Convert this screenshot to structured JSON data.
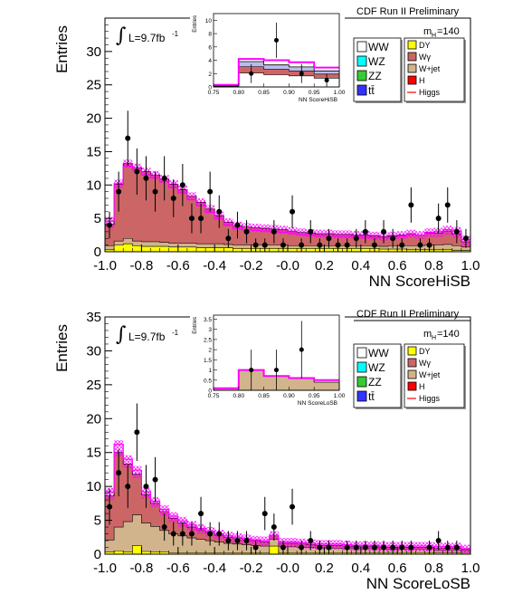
{
  "common": {
    "ylabel": "Entries",
    "experiment": "CDF Run II Preliminary",
    "mass_label": "m",
    "mass_sub": "H",
    "mass_value": "=140",
    "lumi_label": "L=9.7fb",
    "lumi_exp": "-1",
    "integral_symbol": "∫",
    "xticks": [
      "-1.0",
      "-0.8",
      "-0.6",
      "-0.4",
      "-0.2",
      "-0.0",
      "0.2",
      "0.4",
      "0.6",
      "0.8",
      "1.0"
    ],
    "inset_xticks": [
      "0.75",
      "0.80",
      "0.85",
      "0.90",
      "0.95",
      "1.00"
    ],
    "inset_ylabel": "Entries",
    "legend_left": [
      {
        "label": "WW",
        "color": "#ffffff"
      },
      {
        "label": "WZ",
        "color": "#00ffff"
      },
      {
        "label": "ZZ",
        "color": "#33cc33"
      },
      {
        "label": "tt̄",
        "color": "#3333ff"
      }
    ],
    "legend_right": [
      {
        "label": "DY",
        "color": "#ffff00"
      },
      {
        "label": "Wγ",
        "color": "#cc6666"
      },
      {
        "label": "W+jet",
        "color": "#d2b48c"
      },
      {
        "label": "H",
        "color": "#ff0000"
      },
      {
        "label": "Higgs",
        "color": "#ff3333",
        "line": true
      }
    ],
    "colors": {
      "bkg_total": "#cc6666",
      "wjet": "#d2b48c",
      "dy": "#ffff00",
      "ww": "#ffffff",
      "signal": "#ff00ff",
      "data": "#000000"
    }
  },
  "chart_data": [
    {
      "type": "bar",
      "xlabel": "NN ScoreHiSB",
      "ylabel": "Entries",
      "xlim": [
        -1.0,
        1.0
      ],
      "ylim": [
        0,
        35
      ],
      "yticks": [
        0,
        5,
        10,
        15,
        20,
        25,
        30
      ],
      "bin_edges_start": -1.0,
      "bin_width": 0.05,
      "series": [
        {
          "name": "Wγ",
          "values": [
            3.2,
            8.5,
            11.2,
            11.0,
            10.5,
            10.0,
            9.5,
            8.8,
            8.0,
            7.0,
            6.2,
            5.2,
            4.2,
            3.3,
            2.9,
            2.7,
            2.6,
            2.5,
            2.4,
            2.3,
            2.2,
            2.0,
            1.9,
            1.8,
            1.8,
            1.7,
            1.7,
            1.6,
            1.6,
            1.5,
            1.5,
            1.5,
            1.6,
            1.8,
            1.6,
            1.8,
            1.8,
            2.0,
            1.8,
            0.8
          ]
        },
        {
          "name": "W+jet",
          "values": [
            0.6,
            0.6,
            0.8,
            0.7,
            0.7,
            0.7,
            0.6,
            0.6,
            0.6,
            0.6,
            0.6,
            0.6,
            0.6,
            0.5,
            0.5,
            0.5,
            0.5,
            0.5,
            0.5,
            0.5,
            0.4,
            0.4,
            0.4,
            0.4,
            0.4,
            0.4,
            0.4,
            0.4,
            0.4,
            0.4,
            0.4,
            0.5,
            0.5,
            0.6,
            0.6,
            0.7,
            0.7,
            0.8,
            0.7,
            0.5
          ]
        },
        {
          "name": "DY",
          "values": [
            0.3,
            1.0,
            1.2,
            0.9,
            0.8,
            0.8,
            0.8,
            0.7,
            0.7,
            0.7,
            0.6,
            0.6,
            0.6,
            0.6,
            0.5,
            0.5,
            0.5,
            0.5,
            0.5,
            0.5,
            0.5,
            0.5,
            0.5,
            0.5,
            0.5,
            0.5,
            0.5,
            0.5,
            0.5,
            0.5,
            0.4,
            0.4,
            0.4,
            0.3,
            0.3,
            0.3,
            0.3,
            0.3,
            0.2,
            0.2
          ]
        },
        {
          "name": "Higgs",
          "values": [
            4.6,
            10.2,
            12.8,
            12.3,
            11.5,
            11.1,
            10.5,
            9.6,
            8.8,
            7.8,
            6.9,
            5.9,
            4.9,
            4.0,
            3.5,
            3.3,
            3.2,
            3.1,
            3.0,
            2.9,
            2.8,
            2.6,
            2.5,
            2.4,
            2.4,
            2.3,
            2.3,
            2.2,
            2.2,
            2.1,
            2.1,
            2.2,
            2.3,
            2.6,
            2.5,
            2.9,
            3.0,
            3.3,
            3.1,
            1.8
          ]
        },
        {
          "name": "Data",
          "values": [
            4,
            9,
            17,
            12,
            11,
            9,
            11,
            8,
            10,
            5,
            5,
            9,
            6,
            2,
            4,
            3,
            1,
            1,
            3,
            1,
            6,
            1,
            3,
            1,
            2,
            1,
            1,
            2,
            3,
            1,
            3,
            2,
            1,
            7,
            1,
            1,
            5,
            7,
            3,
            2
          ]
        }
      ],
      "inset": {
        "xlabel": "NN ScoreHiSB",
        "xlim": [
          0.75,
          1.0
        ],
        "ylim": [
          0,
          11
        ],
        "yticks": [
          0,
          2,
          4,
          6,
          8,
          10
        ],
        "bin_edges_start": 0.75,
        "bin_width": 0.05,
        "series": [
          {
            "name": "Background",
            "values": [
              0.2,
              3.8,
              3.3,
              3.0,
              2.4
            ]
          },
          {
            "name": "Higgs",
            "values": [
              0.3,
              4.2,
              4.0,
              3.7,
              2.9
            ]
          },
          {
            "name": "Data",
            "values": [
              0,
              2,
              7,
              2,
              1
            ]
          }
        ]
      }
    },
    {
      "type": "bar",
      "xlabel": "NN ScoreLoSB",
      "ylabel": "Entries",
      "xlim": [
        -1.0,
        1.0
      ],
      "ylim": [
        0,
        35
      ],
      "yticks": [
        0,
        5,
        10,
        15,
        20,
        25,
        30,
        35
      ],
      "bin_edges_start": -1.0,
      "bin_width": 0.05,
      "series": [
        {
          "name": "Wγ",
          "values": [
            6.5,
            11.0,
            8.5,
            6.0,
            4.2,
            3.4,
            2.8,
            2.3,
            1.9,
            1.6,
            1.4,
            1.2,
            1.0,
            0.9,
            0.8,
            0.7,
            0.7,
            0.6,
            0.6,
            0.5,
            0.5,
            0.5,
            0.4,
            0.4,
            0.4,
            0.4,
            0.4,
            0.3,
            0.3,
            0.3,
            0.3,
            0.3,
            0.3,
            0.3,
            0.3,
            0.3,
            0.3,
            0.3,
            0.3,
            0.2
          ]
        },
        {
          "name": "W+jet",
          "values": [
            1.8,
            3.5,
            4.5,
            4.5,
            4.2,
            3.8,
            3.2,
            2.8,
            2.5,
            2.2,
            2.0,
            1.8,
            1.6,
            1.4,
            1.3,
            1.2,
            1.1,
            1.0,
            1.0,
            0.9,
            0.9,
            0.8,
            0.8,
            0.7,
            0.7,
            0.7,
            0.6,
            0.6,
            0.6,
            0.6,
            0.5,
            0.5,
            0.5,
            0.5,
            0.5,
            0.5,
            0.4,
            0.4,
            0.4,
            0.3
          ]
        },
        {
          "name": "DY",
          "values": [
            0.3,
            0.5,
            0.3,
            1.3,
            0.4,
            0.3,
            0.3,
            0.2,
            0.2,
            0.2,
            0.2,
            0.2,
            0.2,
            0.2,
            0.2,
            0.2,
            0.2,
            0.2,
            1.2,
            0.2,
            0.2,
            0.2,
            0.2,
            0.2,
            0.2,
            0.2,
            0.2,
            0.2,
            0.2,
            0.2,
            0.2,
            0.2,
            0.2,
            0.2,
            0.2,
            0.2,
            0.2,
            0.2,
            0.2,
            0.2
          ]
        },
        {
          "name": "Higgs",
          "values": [
            9.2,
            16.2,
            14.0,
            12.4,
            9.2,
            7.8,
            6.6,
            5.6,
            4.9,
            4.3,
            3.8,
            3.4,
            3.0,
            2.7,
            2.5,
            2.3,
            2.1,
            2.0,
            2.8,
            1.8,
            1.8,
            1.7,
            1.6,
            1.5,
            1.5,
            1.5,
            1.4,
            1.3,
            1.3,
            1.3,
            1.2,
            1.2,
            1.2,
            1.2,
            1.2,
            1.2,
            1.1,
            1.1,
            1.1,
            0.8
          ]
        },
        {
          "name": "Data",
          "values": [
            7,
            12,
            10,
            18,
            10,
            11,
            4,
            3,
            3,
            3,
            6,
            3,
            3,
            2,
            2,
            2,
            1,
            6,
            4,
            1,
            7,
            1,
            2,
            1,
            1,
            0,
            1,
            1,
            1,
            1,
            1,
            1,
            1,
            1,
            0,
            1,
            2,
            1,
            1,
            0
          ]
        }
      ],
      "inset": {
        "xlabel": "NN ScoreLoSB",
        "xlim": [
          0.75,
          1.0
        ],
        "ylim": [
          0,
          3.7
        ],
        "yticks": [
          0,
          0.5,
          1,
          1.5,
          2,
          2.5,
          3,
          3.5
        ],
        "bin_edges_start": 0.75,
        "bin_width": 0.05,
        "series": [
          {
            "name": "Background",
            "values": [
              0.1,
              1.0,
              0.7,
              0.6,
              0.4
            ]
          },
          {
            "name": "Higgs",
            "values": [
              0.1,
              1.0,
              0.7,
              0.6,
              0.5
            ]
          },
          {
            "name": "Data",
            "values": [
              0,
              1,
              1,
              2,
              0
            ]
          }
        ]
      }
    }
  ]
}
